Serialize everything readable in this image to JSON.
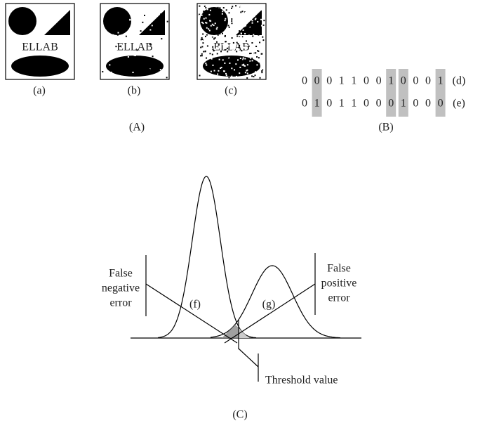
{
  "panel_a": {
    "images": [
      {
        "text": "ELLAB",
        "label": "(a)"
      },
      {
        "text": "ELLAB",
        "label": "(b)"
      },
      {
        "text": "ELLAB",
        "label": "(c)"
      }
    ],
    "caption": "(A)"
  },
  "panel_b": {
    "rows": [
      {
        "bits": [
          "0",
          "0",
          "0",
          "1",
          "1",
          "0",
          "0",
          "1",
          "0",
          "0",
          "0",
          "1"
        ],
        "label": "(d)"
      },
      {
        "bits": [
          "0",
          "1",
          "0",
          "1",
          "1",
          "0",
          "0",
          "0",
          "1",
          "0",
          "0",
          "0"
        ],
        "label": "(e)"
      }
    ],
    "caption": "(B)"
  },
  "panel_c": {
    "curves": [
      "(f)",
      "(g)"
    ],
    "false_negative": [
      "False",
      "negative",
      "error"
    ],
    "false_positive": [
      "False",
      "positive",
      "error"
    ],
    "threshold": "Threshold value",
    "caption": "(C)"
  }
}
